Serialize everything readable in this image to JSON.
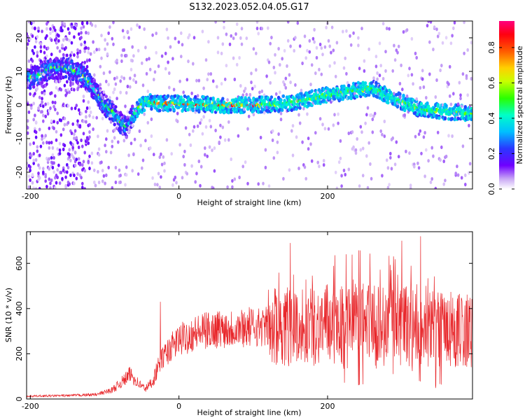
{
  "title": "S132.2023.052.04.05.G17",
  "chart_data": [
    {
      "type": "heatmap",
      "xlabel": "Height of straight line (km)",
      "ylabel": "Frequency (Hz)",
      "xlim": [
        -205,
        395
      ],
      "ylim": [
        -25,
        25
      ],
      "xticks": [
        -200,
        0,
        200
      ],
      "yticks": [
        -20,
        -10,
        0,
        10,
        20
      ],
      "colorbar": {
        "label": "Normalized spectral amplitude",
        "range": [
          0,
          0.95
        ],
        "ticks": [
          0.0,
          0.2,
          0.4,
          0.6,
          0.8
        ]
      },
      "ridge": [
        [
          -195,
          8
        ],
        [
          -180,
          10
        ],
        [
          -170,
          11
        ],
        [
          -150,
          11
        ],
        [
          -130,
          9
        ],
        [
          -115,
          5
        ],
        [
          -100,
          0
        ],
        [
          -90,
          -2
        ],
        [
          -80,
          -5
        ],
        [
          -70,
          -7
        ],
        [
          -62,
          -3
        ],
        [
          -55,
          -1
        ],
        [
          -45,
          1
        ],
        [
          -30,
          0.5
        ],
        [
          0,
          0.5
        ],
        [
          50,
          0
        ],
        [
          100,
          0
        ],
        [
          150,
          0.5
        ],
        [
          200,
          3
        ],
        [
          230,
          4
        ],
        [
          260,
          5
        ],
        [
          290,
          2
        ],
        [
          320,
          -1
        ],
        [
          360,
          -2
        ],
        [
          395,
          -2.5
        ]
      ]
    },
    {
      "type": "line",
      "xlabel": "Height of straight line (km)",
      "ylabel": "SNR (10 * v/v)",
      "xlim": [
        -205,
        395
      ],
      "ylim": [
        0,
        740
      ],
      "xticks": [
        -200,
        0,
        200
      ],
      "yticks": [
        0,
        200,
        400,
        600
      ],
      "color": "#e8262a",
      "envelope": [
        [
          -205,
          12
        ],
        [
          -150,
          15
        ],
        [
          -110,
          20
        ],
        [
          -90,
          40
        ],
        [
          -75,
          80
        ],
        [
          -65,
          110
        ],
        [
          -55,
          70
        ],
        [
          -45,
          45
        ],
        [
          -35,
          80
        ],
        [
          -25,
          170
        ],
        [
          -10,
          230
        ],
        [
          0,
          260
        ],
        [
          20,
          290
        ],
        [
          50,
          310
        ],
        [
          100,
          320
        ],
        [
          150,
          320
        ],
        [
          200,
          330
        ],
        [
          250,
          330
        ],
        [
          300,
          320
        ],
        [
          350,
          310
        ],
        [
          395,
          300
        ]
      ],
      "peaks": [
        [
          -25,
          430
        ],
        [
          150,
          690
        ],
        [
          225,
          640
        ],
        [
          300,
          700
        ],
        [
          325,
          720
        ]
      ]
    }
  ]
}
